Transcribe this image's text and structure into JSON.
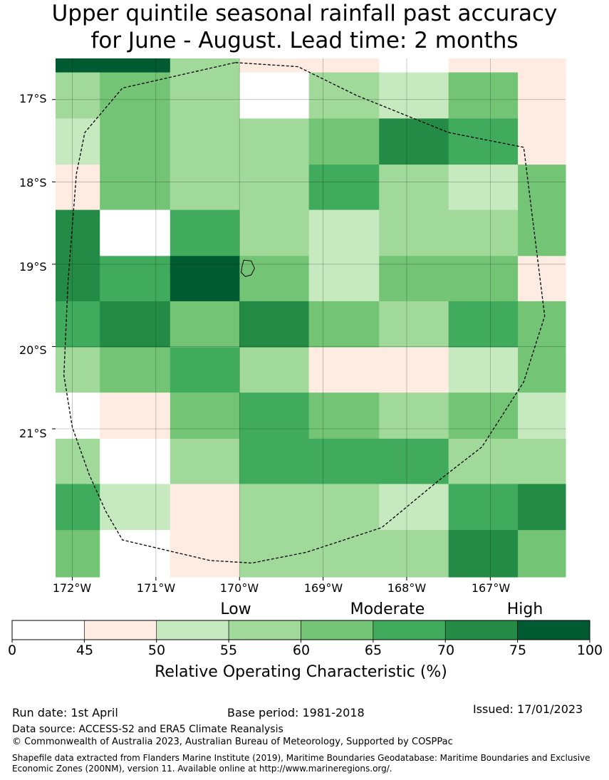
{
  "title_line1": "Upper quintile seasonal rainfall past accuracy",
  "title_line2": "for June - August. Lead time: 2 months",
  "chart_data": {
    "type": "heatmap",
    "lon_range": [
      -172.2,
      -166.1
    ],
    "lat_range": [
      -22.8,
      -16.5
    ],
    "cell_size_deg": 0.5556,
    "lon_ticks": [
      "172°W",
      "171°W",
      "170°W",
      "169°W",
      "168°W",
      "167°W"
    ],
    "lat_ticks": [
      "17°S",
      "18°S",
      "19°S",
      "20°S",
      "21°S"
    ],
    "columns_lon_edges": [
      -172.2,
      -171.67,
      -170.83,
      -170.0,
      -169.17,
      -168.33,
      -167.5,
      -166.67,
      -166.1
    ],
    "rows_lat_edges": [
      -16.5,
      -16.67,
      -17.23,
      -17.79,
      -18.34,
      -18.9,
      -19.45,
      -20.01,
      -20.56,
      -21.12,
      -21.67,
      -22.23,
      -22.8
    ],
    "roc_values_percent_by_row": [
      [
        77,
        77,
        57,
        48,
        48,
        40,
        48,
        48
      ],
      [
        57,
        62,
        57,
        40,
        57,
        52,
        62,
        48
      ],
      [
        52,
        62,
        57,
        57,
        62,
        72,
        67,
        48
      ],
      [
        48,
        62,
        57,
        57,
        67,
        57,
        52,
        62
      ],
      [
        72,
        40,
        67,
        57,
        52,
        57,
        57,
        62
      ],
      [
        72,
        67,
        77,
        62,
        52,
        62,
        62,
        48
      ],
      [
        67,
        72,
        62,
        72,
        62,
        57,
        67,
        62
      ],
      [
        57,
        62,
        67,
        57,
        48,
        48,
        52,
        62
      ],
      [
        40,
        48,
        62,
        67,
        62,
        57,
        62,
        52
      ],
      [
        57,
        40,
        57,
        67,
        67,
        67,
        57,
        57
      ],
      [
        67,
        52,
        48,
        57,
        57,
        52,
        67,
        72
      ],
      [
        62,
        40,
        48,
        57,
        57,
        57,
        72,
        62
      ]
    ],
    "boundary_outline_lonlat": [
      [
        -170.05,
        -16.55
      ],
      [
        -169.3,
        -16.6
      ],
      [
        -168.6,
        -16.95
      ],
      [
        -167.5,
        -17.4
      ],
      [
        -166.6,
        -17.58
      ],
      [
        -166.35,
        -19.63
      ],
      [
        -166.6,
        -20.43
      ],
      [
        -167.1,
        -21.22
      ],
      [
        -167.62,
        -21.63
      ],
      [
        -168.3,
        -22.2
      ],
      [
        -169.2,
        -22.5
      ],
      [
        -169.85,
        -22.63
      ],
      [
        -170.35,
        -22.6
      ],
      [
        -171.4,
        -22.35
      ],
      [
        -171.6,
        -22.0
      ],
      [
        -171.8,
        -21.55
      ],
      [
        -172.0,
        -20.98
      ],
      [
        -172.1,
        -20.35
      ],
      [
        -172.05,
        -19.2
      ],
      [
        -171.95,
        -17.9
      ],
      [
        -171.85,
        -17.4
      ],
      [
        -171.4,
        -16.86
      ],
      [
        -170.05,
        -16.55
      ]
    ],
    "island_outline_lonlat": [
      [
        -169.95,
        -18.95
      ],
      [
        -169.86,
        -18.96
      ],
      [
        -169.82,
        -19.05
      ],
      [
        -169.86,
        -19.13
      ],
      [
        -169.93,
        -19.15
      ],
      [
        -169.98,
        -19.1
      ],
      [
        -169.97,
        -19.03
      ],
      [
        -169.95,
        -18.95
      ]
    ],
    "colorbar": {
      "title": "Relative Operating Characteristic (%)",
      "ticks": [
        "0",
        "45",
        "50",
        "55",
        "60",
        "65",
        "70",
        "75",
        "100"
      ],
      "bounds": [
        0,
        45,
        50,
        55,
        60,
        65,
        70,
        75,
        100
      ],
      "colors": [
        "#ffffff",
        "#feebe2",
        "#c7e9c0",
        "#a1d99b",
        "#74c476",
        "#41ab5d",
        "#238b45",
        "#005a32"
      ],
      "category_labels": [
        "Low",
        "Moderate",
        "High"
      ]
    }
  },
  "footer": {
    "run_date": "Run date: 1st April",
    "base_period": "Base period: 1981-2018",
    "issued": "Issued: 17/01/2023",
    "data_source": "Data source: ACCESS-S2 and ERA5 Climate Reanalysis",
    "copyright": "© Commonwealth of Australia 2023, Australian Bureau of Meteorology, Supported by COSPPac",
    "shapefile": "Shapefile data extracted from Flanders Marine Institute (2019), Maritime Boundaries Geodatabase: Maritime Boundaries and Exclusive Economic Zones (200NM), version 11. Available online at http://www.marineregions.org/."
  }
}
